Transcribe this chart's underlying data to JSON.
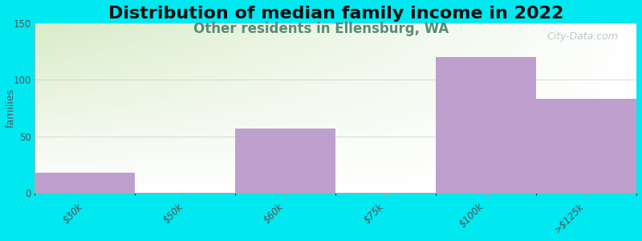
{
  "title": "Distribution of median family income in 2022",
  "subtitle": "Other residents in Ellensburg, WA",
  "ylabel": "families",
  "categories": [
    "$30k",
    "$50k",
    "$60k",
    "$75k",
    "$100k",
    ">$125k"
  ],
  "bar_lefts": [
    0,
    1,
    2,
    3,
    4,
    5
  ],
  "values": [
    18,
    0,
    57,
    0,
    120,
    83
  ],
  "bar_color": "#bf9fce",
  "bar_width": 1.0,
  "ylim": [
    0,
    150
  ],
  "yticks": [
    0,
    50,
    100,
    150
  ],
  "xlim": [
    0,
    6
  ],
  "bg_color": "#00e8f0",
  "plot_bg_grad_top": "#d8ecc8",
  "plot_bg_grad_bottom": "#f5f5f0",
  "plot_bg_right": "#f0f0f0",
  "title_fontsize": 16,
  "subtitle_fontsize": 12,
  "subtitle_color": "#5a8a7a",
  "watermark": "City-Data.com",
  "watermark_color": "#b0c0c8"
}
